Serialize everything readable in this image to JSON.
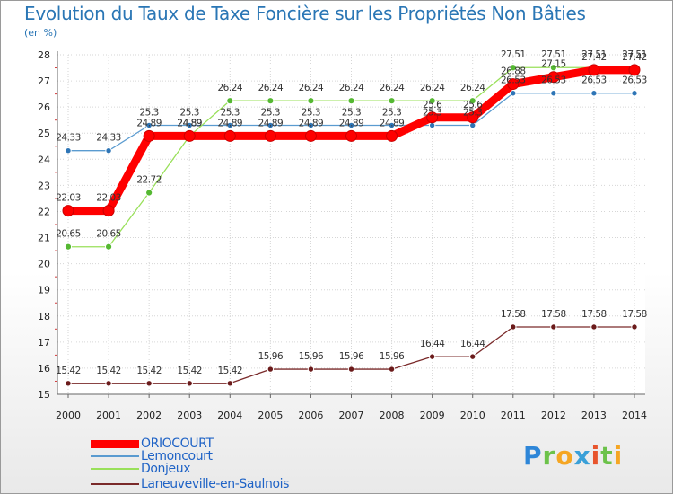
{
  "chart_data": {
    "type": "line",
    "title": "Evolution du Taux de Taxe Foncière sur les Propriétés Non Bâties",
    "ylabel": "(en %)",
    "xlabel": "",
    "ylim": [
      15,
      28
    ],
    "yticks": [
      15,
      16,
      17,
      18,
      19,
      20,
      21,
      22,
      23,
      24,
      25,
      26,
      27,
      28
    ],
    "categories": [
      "2000",
      "2001",
      "2002",
      "2003",
      "2004",
      "2005",
      "2006",
      "2007",
      "2008",
      "2009",
      "2010",
      "2011",
      "2012",
      "2013",
      "2014"
    ],
    "series": [
      {
        "name": "ORIOCOURT",
        "color": "#ff0000",
        "values": [
          22.03,
          22.03,
          24.89,
          24.89,
          24.89,
          24.89,
          24.89,
          24.89,
          24.89,
          25.6,
          25.6,
          26.88,
          27.15,
          27.42,
          27.42
        ],
        "labels": [
          "22.03",
          "22.03",
          "24.89",
          "24.89",
          "24.89",
          "24.89",
          "24.89",
          "24.89",
          "24.89",
          "25.6",
          "25.6",
          "26.88",
          "27.15",
          "27.42",
          "27.42"
        ]
      },
      {
        "name": "Lemoncourt",
        "color": "#5a9bd0",
        "values": [
          24.33,
          24.33,
          25.3,
          25.3,
          25.3,
          25.3,
          25.3,
          25.3,
          25.3,
          25.3,
          25.3,
          26.53,
          26.53,
          26.53,
          26.53
        ],
        "labels": [
          "24.33",
          "24.33",
          "25.3",
          "25.3",
          "25.3",
          "25.3",
          "25.3",
          "25.3",
          "25.3",
          "25.3",
          "25.3",
          "26.53",
          "26.53",
          "26.53",
          "26.53"
        ]
      },
      {
        "name": "Donjeux",
        "color": "#99e05a",
        "values": [
          20.65,
          20.65,
          22.72,
          24.89,
          26.24,
          26.24,
          26.24,
          26.24,
          26.24,
          26.24,
          26.24,
          27.51,
          27.51,
          27.51,
          27.51
        ],
        "labels": [
          "20.65",
          "20.65",
          "22.72",
          "24.89",
          "26.24",
          "26.24",
          "26.24",
          "26.24",
          "26.24",
          "26.24",
          "26.24",
          "27.51",
          "27.51",
          "27.51",
          "27.51"
        ]
      },
      {
        "name": "Laneuveville-en-Saulnois",
        "color": "#7a2a2a",
        "values": [
          15.42,
          15.42,
          15.42,
          15.42,
          15.42,
          15.96,
          15.96,
          15.96,
          15.96,
          16.44,
          16.44,
          17.58,
          17.58,
          17.58,
          17.58
        ],
        "labels": [
          "15.42",
          "15.42",
          "15.42",
          "15.42",
          "15.42",
          "15.96",
          "15.96",
          "15.96",
          "15.96",
          "16.44",
          "16.44",
          "17.58",
          "17.58",
          "17.58",
          "17.58"
        ]
      }
    ]
  },
  "brand": {
    "letters": [
      "P",
      "r",
      "o",
      "x",
      "i",
      "t",
      "i"
    ],
    "colors": [
      "#2e86d8",
      "#6cc24a",
      "#f5a623",
      "#3aa0d8",
      "#e8552d",
      "#6cc24a",
      "#f5a623"
    ]
  }
}
